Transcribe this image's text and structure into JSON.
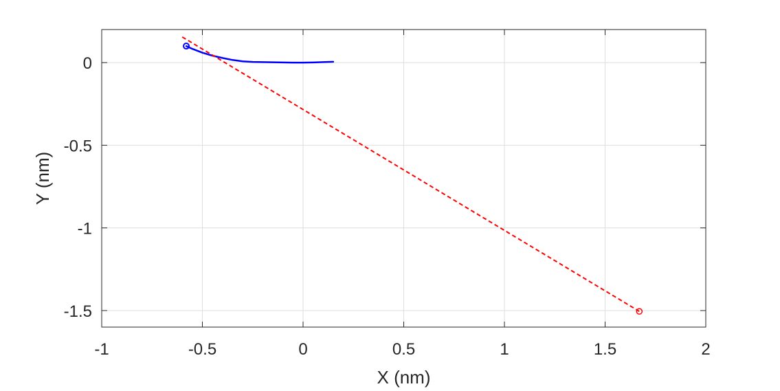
{
  "chart_data": {
    "type": "line",
    "title": "",
    "xlabel": "X (nm)",
    "ylabel": "Y (nm)",
    "xlim": [
      -1,
      2
    ],
    "ylim": [
      -1.6,
      0.2
    ],
    "xticks": [
      -1,
      -0.5,
      0,
      0.5,
      1,
      1.5,
      2
    ],
    "xtick_labels": [
      "-1",
      "-0.5",
      "0",
      "0.5",
      "1",
      "1.5",
      "2"
    ],
    "yticks": [
      0,
      -0.5,
      -1,
      -1.5
    ],
    "ytick_labels": [
      "0",
      "-0.5",
      "-1",
      "-1.5"
    ],
    "grid": true,
    "legend": "none",
    "series": [
      {
        "color": "#0000ff",
        "style": "solid",
        "x": [
          -0.58,
          -0.55,
          -0.5,
          -0.45,
          -0.4,
          -0.35,
          -0.3,
          -0.25,
          -0.2,
          -0.15,
          -0.1,
          -0.05,
          0,
          0.05,
          0.1,
          0.15
        ],
        "y": [
          0.1,
          0.083,
          0.06,
          0.042,
          0.028,
          0.016,
          0.008,
          0.004,
          0.003,
          0.002,
          0.001,
          0.0,
          0.0,
          0.001,
          0.003,
          0.005
        ],
        "start_marker": "circle"
      },
      {
        "color": "#ff0000",
        "style": "dashed",
        "x": [
          -0.6,
          1.67
        ],
        "y": [
          0.155,
          -1.505
        ],
        "end_marker": "circle"
      }
    ]
  }
}
